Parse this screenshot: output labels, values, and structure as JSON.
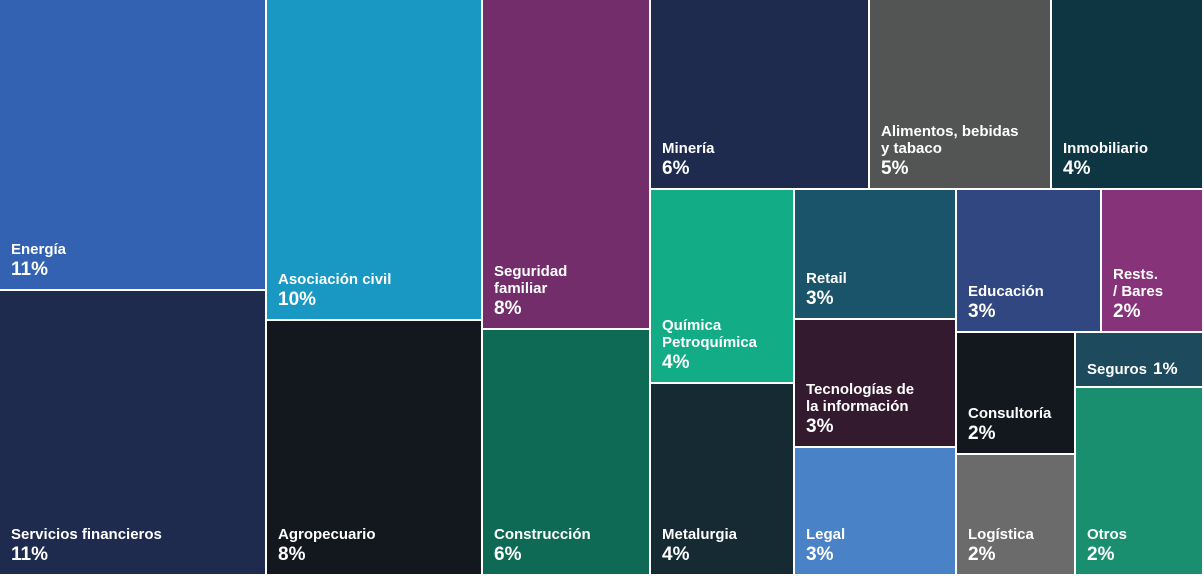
{
  "chart_data": {
    "type": "treemap",
    "items": [
      {
        "key": "energia",
        "label": "Energía",
        "value": 11,
        "display": "11%",
        "color": "#3262b1"
      },
      {
        "key": "servicios-financieros",
        "label": "Servicios financieros",
        "value": 11,
        "display": "11%",
        "color": "#1f2a4f"
      },
      {
        "key": "asociacion-civil",
        "label": "Asociación civil",
        "value": 10,
        "display": "10%",
        "color": "#1898c2"
      },
      {
        "key": "agropecuario",
        "label": "Agropecuario",
        "value": 8,
        "display": "8%",
        "color": "#13181e"
      },
      {
        "key": "seguridad-familiar",
        "label": "Seguridad\nfamiliar",
        "value": 8,
        "display": "8%",
        "color": "#732d6b"
      },
      {
        "key": "construccion",
        "label": "Construcción",
        "value": 6,
        "display": "6%",
        "color": "#0f6a55"
      },
      {
        "key": "mineria",
        "label": "Minería",
        "value": 6,
        "display": "6%",
        "color": "#1f2a4f"
      },
      {
        "key": "alimentos",
        "label": "Alimentos, bebidas\ny tabaco",
        "value": 5,
        "display": "5%",
        "color": "#535554"
      },
      {
        "key": "inmobiliario",
        "label": "Inmobiliario",
        "value": 4,
        "display": "4%",
        "color": "#0e3542"
      },
      {
        "key": "quimica",
        "label": "Química\nPetroquímica",
        "value": 4,
        "display": "4%",
        "color": "#12ad86"
      },
      {
        "key": "metalurgia",
        "label": "Metalurgia",
        "value": 4,
        "display": "4%",
        "color": "#152a33"
      },
      {
        "key": "retail",
        "label": "Retail",
        "value": 3,
        "display": "3%",
        "color": "#19546b"
      },
      {
        "key": "tecnologias",
        "label": "Tecnologías de\nla información",
        "value": 3,
        "display": "3%",
        "color": "#331a2f"
      },
      {
        "key": "legal",
        "label": "Legal",
        "value": 3,
        "display": "3%",
        "color": "#4a82c7"
      },
      {
        "key": "educacion",
        "label": "Educación",
        "value": 3,
        "display": "3%",
        "color": "#304781"
      },
      {
        "key": "rests-bares",
        "label": "Rests.\n/ Bares",
        "value": 2,
        "display": "2%",
        "color": "#873379"
      },
      {
        "key": "consultoria",
        "label": "Consultoría",
        "value": 2,
        "display": "2%",
        "color": "#13181e"
      },
      {
        "key": "logistica",
        "label": "Logística",
        "value": 2,
        "display": "2%",
        "color": "#6b6b6b"
      },
      {
        "key": "seguros",
        "label": "Seguros",
        "value": 1,
        "display": "1%",
        "color": "#1d4a5c"
      },
      {
        "key": "otros",
        "label": "Otros",
        "value": 2,
        "display": "2%",
        "color": "#1a8f6f"
      }
    ]
  }
}
